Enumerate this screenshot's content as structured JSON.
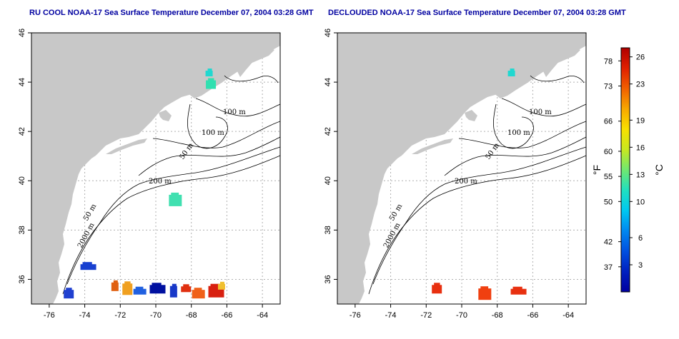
{
  "panels": [
    {
      "title": "RU COOL NOAA-17 Sea Surface Temperature December 07, 2004 03:28 GMT",
      "contours": [
        "100 m",
        "100 m",
        "50 m",
        "200 m",
        "50 m",
        "2000 m"
      ],
      "sst_patches": [
        {
          "lon": -67.0,
          "lat": 44.35,
          "color": "#20d8d0"
        },
        {
          "lon": -66.9,
          "lat": 43.9,
          "color": "#30e0b0"
        },
        {
          "lon": -68.9,
          "lat": 39.2,
          "color": "#40e0b0"
        },
        {
          "lon": -73.8,
          "lat": 36.5,
          "color": "#1840d0"
        },
        {
          "lon": -72.3,
          "lat": 35.7,
          "color": "#e06010"
        },
        {
          "lon": -71.6,
          "lat": 35.6,
          "color": "#f0a020"
        },
        {
          "lon": -70.9,
          "lat": 35.5,
          "color": "#2060e0"
        },
        {
          "lon": -69.9,
          "lat": 35.6,
          "color": "#0010a0"
        },
        {
          "lon": -69.0,
          "lat": 35.5,
          "color": "#1838c8"
        },
        {
          "lon": -68.3,
          "lat": 35.6,
          "color": "#e03010"
        },
        {
          "lon": -67.6,
          "lat": 35.4,
          "color": "#f06018"
        },
        {
          "lon": -66.6,
          "lat": 35.5,
          "color": "#d82010"
        },
        {
          "lon": -66.3,
          "lat": 35.7,
          "color": "#f0c030"
        },
        {
          "lon": -74.9,
          "lat": 35.4,
          "color": "#2040d0"
        }
      ]
    },
    {
      "title": "DECLOUDED NOAA-17 Sea Surface Temperature December 07, 2004 03:28 GMT",
      "contours": [
        "100 m",
        "100 m",
        "50 m",
        "200 m",
        "50 m",
        "2000 m"
      ],
      "sst_patches": [
        {
          "lon": -67.2,
          "lat": 44.35,
          "color": "#20d8d0"
        },
        {
          "lon": -71.4,
          "lat": 35.6,
          "color": "#e83010"
        },
        {
          "lon": -68.7,
          "lat": 35.4,
          "color": "#f04010"
        },
        {
          "lon": -66.8,
          "lat": 35.5,
          "color": "#e83010"
        }
      ]
    }
  ],
  "axes": {
    "lon_range": [
      -77,
      -63
    ],
    "lat_range": [
      35,
      46
    ],
    "lon_ticks": [
      "-76",
      "-74",
      "-72",
      "-70",
      "-68",
      "-66",
      "-64"
    ],
    "lat_ticks": [
      "36",
      "38",
      "40",
      "42",
      "44",
      "46"
    ]
  },
  "colorbar": {
    "unit_f": "°F",
    "unit_c": "°C",
    "range_c": [
      0,
      27
    ],
    "f_ticks": [
      "78",
      "73",
      "66",
      "60",
      "55",
      "50",
      "42",
      "37"
    ],
    "c_ticks": [
      "26",
      "23",
      "19",
      "16",
      "13",
      "10",
      "6",
      "3"
    ],
    "colors": [
      "#0000a0",
      "#0020c0",
      "#0050e0",
      "#0088f0",
      "#00c8f0",
      "#20e0c0",
      "#70e870",
      "#c8e820",
      "#f8e000",
      "#f8a800",
      "#f06000",
      "#e02000",
      "#b00000"
    ]
  },
  "colors": {
    "land": "#c8c8c8",
    "water": "#ffffff",
    "grid": "#b0b0b0",
    "title": "#0000a0"
  }
}
